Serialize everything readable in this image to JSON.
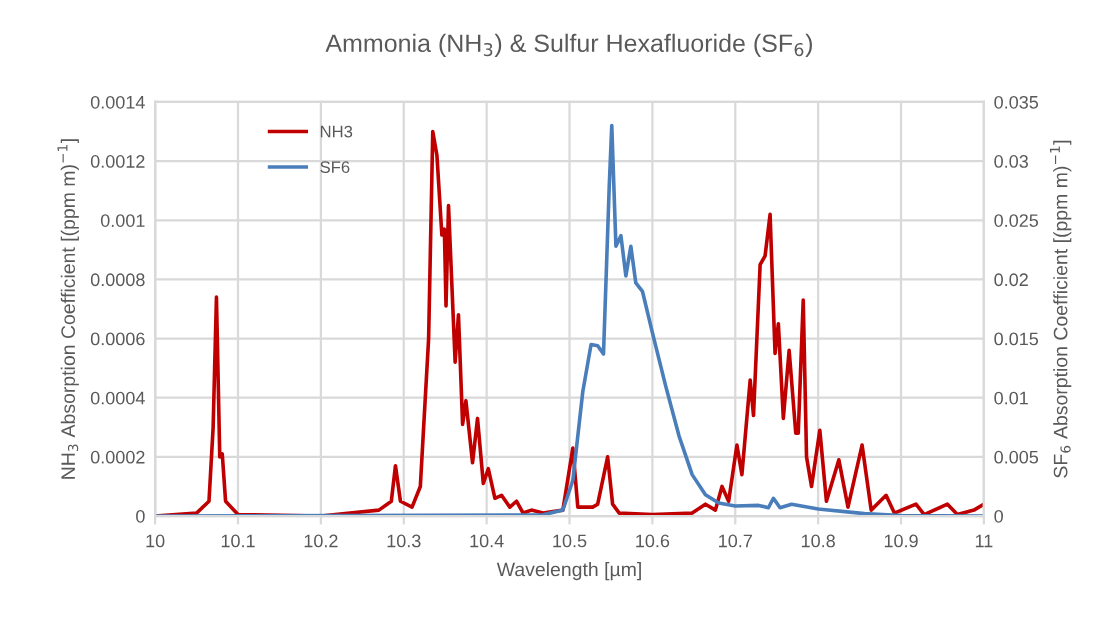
{
  "chart_data": {
    "type": "line",
    "title": "Ammonia (NH$_{3}$) & Sulfur Hexafluoride (SF$_{6}$)",
    "xlabel": "Wavelength [µm]",
    "ylabel": "NH$_{3}$ Absorption Coefficient [(ppm m)$^{−1}$]",
    "y2label": "SF$_{6}$ Absorption Coefficient [(ppm m)$^{−1}$]",
    "xlim": [
      10,
      11
    ],
    "xticks": [
      10,
      10.1,
      10.2,
      10.3,
      10.4,
      10.5,
      10.6,
      10.7,
      10.8,
      10.9,
      11
    ],
    "ylim": [
      0,
      0.0014
    ],
    "yticks": [
      0,
      0.0002,
      0.0004,
      0.0006,
      0.0008,
      0.001,
      0.0012,
      0.0014
    ],
    "y2lim": [
      0,
      0.035
    ],
    "y2ticks": [
      0,
      0.005,
      0.01,
      0.015,
      0.02,
      0.025,
      0.03,
      0.035
    ],
    "grid": true,
    "legend": "top left",
    "marker": "none",
    "line_style": "solid",
    "series": [
      {
        "name": "NH3",
        "color": "#c00000",
        "x": [
          10.0,
          10.05,
          10.065,
          10.07,
          10.074,
          10.078,
          10.081,
          10.085,
          10.1,
          10.2,
          10.27,
          10.285,
          10.29,
          10.296,
          10.31,
          10.32,
          10.33,
          10.335,
          10.34,
          10.346,
          10.349,
          10.351,
          10.354,
          10.362,
          10.366,
          10.371,
          10.375,
          10.383,
          10.389,
          10.396,
          10.402,
          10.41,
          10.418,
          10.428,
          10.436,
          10.444,
          10.454,
          10.468,
          10.492,
          10.504,
          10.51,
          10.528,
          10.534,
          10.546,
          10.552,
          10.56,
          10.6,
          10.648,
          10.664,
          10.676,
          10.684,
          10.692,
          10.702,
          10.708,
          10.718,
          10.722,
          10.73,
          10.736,
          10.742,
          10.748,
          10.752,
          10.758,
          10.765,
          10.773,
          10.776,
          10.782,
          10.786,
          10.792,
          10.802,
          10.81,
          10.825,
          10.836,
          10.853,
          10.864,
          10.882,
          10.892,
          10.918,
          10.928,
          10.956,
          10.968,
          10.988,
          11.0
        ],
        "values": [
          0,
          1e-05,
          5e-05,
          0.0003,
          0.00074,
          0.0002,
          0.00021,
          5e-05,
          5e-06,
          0,
          2e-05,
          5e-05,
          0.00017,
          5e-05,
          3e-05,
          0.0001,
          0.0006,
          0.0013,
          0.00122,
          0.00095,
          0.00097,
          0.00071,
          0.00105,
          0.00052,
          0.00068,
          0.00031,
          0.00039,
          0.00018,
          0.00033,
          0.00011,
          0.00016,
          6e-05,
          7e-05,
          3e-05,
          5e-05,
          1e-05,
          2e-05,
          1e-05,
          2e-05,
          0.00023,
          3e-05,
          3e-05,
          4e-05,
          0.0002,
          4e-05,
          1e-05,
          5e-06,
          1e-05,
          4e-05,
          2e-05,
          0.0001,
          5e-05,
          0.00024,
          0.00014,
          0.00046,
          0.00034,
          0.00085,
          0.00088,
          0.00102,
          0.00055,
          0.00065,
          0.00033,
          0.00056,
          0.00028,
          0.00028,
          0.00073,
          0.0002,
          0.0001,
          0.00029,
          5e-05,
          0.00019,
          3e-05,
          0.00024,
          2e-05,
          7e-05,
          1e-05,
          4e-05,
          5e-06,
          4e-05,
          5e-06,
          2e-05,
          4e-05
        ]
      },
      {
        "name": "SF6",
        "color": "#4a7ebb",
        "axis": "y2",
        "x": [
          10.0,
          10.468,
          10.492,
          10.504,
          10.516,
          10.526,
          10.534,
          10.541,
          10.548,
          10.551,
          10.556,
          10.562,
          10.568,
          10.574,
          10.58,
          10.588,
          10.6,
          10.616,
          10.632,
          10.648,
          10.664,
          10.68,
          10.7,
          10.728,
          10.74,
          10.746,
          10.754,
          10.768,
          10.8,
          10.856,
          10.9,
          11.0
        ],
        "values": [
          0,
          0.0001,
          0.0005,
          0.003,
          0.0105,
          0.0145,
          0.0144,
          0.0137,
          0.028,
          0.033,
          0.0228,
          0.0237,
          0.0203,
          0.0228,
          0.0197,
          0.019,
          0.0155,
          0.011,
          0.0068,
          0.0035,
          0.0018,
          0.0011,
          0.00085,
          0.0009,
          0.0007,
          0.0015,
          0.0007,
          0.001,
          0.0006,
          0.0002,
          5e-05,
          0
        ]
      }
    ]
  }
}
